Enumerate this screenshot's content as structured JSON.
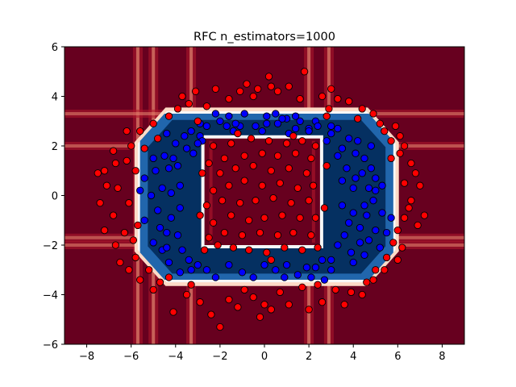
{
  "chart_data": {
    "type": "scatter",
    "title": "RFC n_estimators=1000",
    "xlabel": "",
    "ylabel": "",
    "xlim": [
      -9,
      9
    ],
    "ylim": [
      -6,
      6
    ],
    "x_ticks": [
      -8,
      -6,
      -4,
      -2,
      0,
      2,
      4,
      6,
      8
    ],
    "y_ticks": [
      -6,
      -4,
      -2,
      0,
      2,
      4,
      6
    ],
    "x_tick_labels": [
      "−8",
      "−6",
      "−4",
      "−2",
      "0",
      "2",
      "4",
      "6",
      "8"
    ],
    "y_tick_labels": [
      "−6",
      "−4",
      "−2",
      "0",
      "2",
      "4",
      "6"
    ],
    "grid": false,
    "legend": "none",
    "colors": {
      "class_outer": "#ff0000",
      "class_inner": "#0000ff",
      "region_outer": "#67001f",
      "region_inner": "#053061",
      "marker_edge": "#000000"
    },
    "decision_region": {
      "colormap": "RdBu",
      "inner_ring": {
        "x_range": [
          -3.8,
          3.0
        ],
        "y_range": [
          -3.4,
          3.3
        ],
        "hole_x": [
          -2.7,
          2.5
        ],
        "hole_y": [
          -2.0,
          2.3
        ],
        "corner_offset": 1.1
      },
      "white_bands_x": [
        -5.7,
        -5.0,
        -3.3,
        2.0,
        2.9
      ],
      "white_bands_y": [
        -2.0,
        -1.7,
        3.3,
        2.0
      ]
    },
    "series": [
      {
        "name": "",
        "color": "#0000ff",
        "points": [
          [
            -2.2,
            3.3
          ],
          [
            -1.6,
            3.2
          ],
          [
            -0.9,
            3.3
          ],
          [
            0.1,
            3.2
          ],
          [
            0.5,
            3.3
          ],
          [
            1.0,
            3.1
          ],
          [
            1.6,
            3.0
          ],
          [
            2.3,
            3.0
          ],
          [
            -2.9,
            2.9
          ],
          [
            -3.3,
            2.6
          ],
          [
            -2.6,
            2.8
          ],
          [
            -1.7,
            2.8
          ],
          [
            -1.1,
            2.8
          ],
          [
            -0.4,
            2.8
          ],
          [
            0.1,
            2.9
          ],
          [
            0.6,
            2.9
          ],
          [
            1.4,
            2.7
          ],
          [
            2.0,
            2.7
          ],
          [
            3.0,
            2.8
          ],
          [
            3.3,
            2.7
          ],
          [
            -3.6,
            2.4
          ],
          [
            -2.9,
            2.4
          ],
          [
            -4.0,
            2.1
          ],
          [
            -3.2,
            1.7
          ],
          [
            -4.4,
            2.5
          ],
          [
            -2.8,
            2.2
          ],
          [
            -1.4,
            2.6
          ],
          [
            -0.1,
            2.6
          ],
          [
            1.1,
            2.5
          ],
          [
            2.0,
            2.6
          ],
          [
            2.8,
            2.2
          ],
          [
            3.0,
            2.5
          ],
          [
            3.5,
            1.9
          ],
          [
            3.8,
            2.3
          ],
          [
            4.1,
            1.7
          ],
          [
            4.5,
            1.5
          ],
          [
            4.2,
            2.2
          ],
          [
            4.8,
            2.0
          ],
          [
            3.3,
            1.6
          ],
          [
            4.8,
            1.1
          ],
          [
            5.0,
            0.7
          ],
          [
            5.3,
            0.4
          ],
          [
            4.7,
            0.3
          ],
          [
            4.1,
            0.7
          ],
          [
            4.4,
            0.9
          ],
          [
            3.7,
            1.1
          ],
          [
            3.5,
            0.6
          ],
          [
            4.0,
            0.3
          ],
          [
            4.9,
            -0.2
          ],
          [
            5.3,
            -0.7
          ],
          [
            5.7,
            -0.9
          ],
          [
            4.6,
            -0.8
          ],
          [
            4.0,
            -0.7
          ],
          [
            3.5,
            -0.4
          ],
          [
            3.8,
            -1.1
          ],
          [
            4.3,
            -1.3
          ],
          [
            5.0,
            -1.4
          ],
          [
            4.7,
            -1.8
          ],
          [
            4.3,
            -1.9
          ],
          [
            3.6,
            -1.6
          ],
          [
            3.3,
            -2.0
          ],
          [
            3.9,
            -2.3
          ],
          [
            4.5,
            -2.4
          ],
          [
            5.2,
            -2.1
          ],
          [
            3.0,
            -2.6
          ],
          [
            2.6,
            -2.6
          ],
          [
            3.0,
            -3.0
          ],
          [
            2.7,
            -3.4
          ],
          [
            2.1,
            -3.3
          ],
          [
            1.5,
            -3.2
          ],
          [
            1.0,
            -2.8
          ],
          [
            0.5,
            -3.0
          ],
          [
            0.0,
            -2.8
          ],
          [
            -0.5,
            -3.3
          ],
          [
            -1.0,
            -3.1
          ],
          [
            -1.6,
            -2.8
          ],
          [
            -2.2,
            -3.3
          ],
          [
            -3.0,
            -2.8
          ],
          [
            -3.4,
            -2.6
          ],
          [
            -4.3,
            -2.7
          ],
          [
            -3.7,
            -2.2
          ],
          [
            -4.6,
            -2.2
          ],
          [
            -5.0,
            -1.9
          ],
          [
            -4.4,
            -1.5
          ],
          [
            -3.9,
            -1.6
          ],
          [
            -5.4,
            -1.0
          ],
          [
            -4.8,
            -0.6
          ],
          [
            -4.2,
            -0.9
          ],
          [
            -3.8,
            -0.5
          ],
          [
            -5.1,
            0.0
          ],
          [
            -4.6,
            0.3
          ],
          [
            -4.2,
            0.1
          ],
          [
            -3.8,
            0.4
          ],
          [
            -5.4,
            0.7
          ],
          [
            -4.9,
            1.0
          ],
          [
            -4.3,
            1.1
          ],
          [
            -3.9,
            1.2
          ],
          [
            -4.5,
            1.6
          ],
          [
            -5.0,
            1.5
          ],
          [
            -4.1,
            1.5
          ],
          [
            -5.6,
            0.2
          ],
          [
            -3.3,
            -3.0
          ],
          [
            -2.6,
            -3.0
          ],
          [
            0.9,
            -3.3
          ],
          [
            1.9,
            -2.9
          ],
          [
            4.0,
            -2.7
          ],
          [
            -3.0,
            2.1
          ],
          [
            -2.0,
            3.0
          ],
          [
            -1.3,
            2.9
          ],
          [
            0.8,
            3.1
          ],
          [
            1.4,
            3.2
          ],
          [
            2.4,
            2.8
          ],
          [
            -3.5,
            1.9
          ],
          [
            -4.7,
            -1.3
          ],
          [
            5.5,
            -1.5
          ],
          [
            5.0,
            0.2
          ],
          [
            4.5,
            -0.4
          ],
          [
            -4.4,
            -2.1
          ],
          [
            -3.8,
            -3.1
          ],
          [
            2.3,
            -2.9
          ]
        ]
      },
      {
        "name": "",
        "color": "#ff0000",
        "points": [
          [
            -3.1,
            4.2
          ],
          [
            -2.2,
            4.3
          ],
          [
            -1.6,
            3.9
          ],
          [
            -0.8,
            4.5
          ],
          [
            -0.3,
            4.3
          ],
          [
            0.3,
            4.4
          ],
          [
            1.1,
            4.4
          ],
          [
            1.8,
            5.0
          ],
          [
            2.6,
            4.0
          ],
          [
            3.3,
            3.9
          ],
          [
            3.8,
            3.8
          ],
          [
            4.4,
            3.5
          ],
          [
            4.9,
            3.3
          ],
          [
            5.4,
            2.6
          ],
          [
            5.9,
            2.8
          ],
          [
            6.3,
            2.0
          ],
          [
            6.1,
            1.7
          ],
          [
            6.6,
            1.3
          ],
          [
            6.3,
            0.5
          ],
          [
            6.8,
            0.9
          ],
          [
            7.0,
            0.4
          ],
          [
            6.6,
            -0.2
          ],
          [
            6.3,
            -0.9
          ],
          [
            6.9,
            -1.2
          ],
          [
            6.0,
            -1.4
          ],
          [
            6.2,
            -2.1
          ],
          [
            5.5,
            -2.5
          ],
          [
            5.0,
            -3.0
          ],
          [
            4.6,
            -3.5
          ],
          [
            3.9,
            -3.9
          ],
          [
            3.6,
            -4.4
          ],
          [
            2.6,
            -4.3
          ],
          [
            2.0,
            -4.6
          ],
          [
            1.1,
            -4.4
          ],
          [
            0.3,
            -4.6
          ],
          [
            -0.5,
            -4.1
          ],
          [
            -1.2,
            -4.5
          ],
          [
            -2.0,
            -5.3
          ],
          [
            -2.9,
            -4.3
          ],
          [
            -3.5,
            -4.0
          ],
          [
            -4.1,
            -4.7
          ],
          [
            -5.0,
            -3.8
          ],
          [
            -5.6,
            -3.4
          ],
          [
            -6.1,
            -3.0
          ],
          [
            -6.5,
            -2.7
          ],
          [
            -6.7,
            -2.0
          ],
          [
            -7.2,
            -1.4
          ],
          [
            -6.8,
            -0.8
          ],
          [
            -7.4,
            -0.3
          ],
          [
            -7.1,
            0.4
          ],
          [
            -7.2,
            1.0
          ],
          [
            -6.7,
            1.3
          ],
          [
            -6.2,
            1.4
          ],
          [
            -6.8,
            1.8
          ],
          [
            -6.0,
            2.0
          ],
          [
            -5.6,
            2.6
          ],
          [
            -5.0,
            2.9
          ],
          [
            -4.3,
            3.2
          ],
          [
            -3.9,
            3.5
          ],
          [
            -3.4,
            3.7
          ],
          [
            -2.6,
            3.6
          ],
          [
            -1.1,
            4.2
          ],
          [
            -0.5,
            4.0
          ],
          [
            0.6,
            4.2
          ],
          [
            1.6,
            3.9
          ],
          [
            2.9,
            3.5
          ],
          [
            4.2,
            3.1
          ],
          [
            5.2,
            2.9
          ],
          [
            5.7,
            2.2
          ],
          [
            6.1,
            2.4
          ],
          [
            6.5,
            -0.5
          ],
          [
            5.8,
            -1.9
          ],
          [
            5.4,
            -3.0
          ],
          [
            4.4,
            -4.0
          ],
          [
            3.2,
            -3.8
          ],
          [
            2.4,
            -3.6
          ],
          [
            1.7,
            -3.7
          ],
          [
            0.7,
            -3.9
          ],
          [
            0.0,
            -4.4
          ],
          [
            -0.9,
            -3.8
          ],
          [
            -1.6,
            -4.2
          ],
          [
            -2.4,
            -4.8
          ],
          [
            -3.3,
            -3.6
          ],
          [
            -4.3,
            -3.3
          ],
          [
            -5.2,
            -3.0
          ],
          [
            -5.8,
            -2.5
          ],
          [
            -6.3,
            -1.5
          ],
          [
            -5.7,
            -1.2
          ],
          [
            -6.1,
            -0.3
          ],
          [
            -6.6,
            0.3
          ],
          [
            -5.8,
            1.0
          ],
          [
            -5.4,
            1.9
          ],
          [
            -4.8,
            2.3
          ],
          [
            -2.3,
            2.0
          ],
          [
            -1.5,
            2.1
          ],
          [
            -0.6,
            2.3
          ],
          [
            0.2,
            2.2
          ],
          [
            1.0,
            2.1
          ],
          [
            1.7,
            2.2
          ],
          [
            2.3,
            2.0
          ],
          [
            2.1,
            1.5
          ],
          [
            1.4,
            1.7
          ],
          [
            0.6,
            1.6
          ],
          [
            -0.1,
            1.7
          ],
          [
            -0.9,
            1.6
          ],
          [
            -1.8,
            1.5
          ],
          [
            -2.5,
            1.3
          ],
          [
            -2.0,
            0.9
          ],
          [
            -1.3,
            1.1
          ],
          [
            -0.5,
            1.2
          ],
          [
            0.3,
            1.0
          ],
          [
            1.1,
            1.1
          ],
          [
            1.9,
            0.9
          ],
          [
            2.2,
            0.4
          ],
          [
            1.5,
            0.3
          ],
          [
            0.7,
            0.5
          ],
          [
            -0.1,
            0.4
          ],
          [
            -0.9,
            0.6
          ],
          [
            -1.6,
            0.4
          ],
          [
            -2.3,
            0.2
          ],
          [
            -2.6,
            -0.4
          ],
          [
            -1.9,
            -0.2
          ],
          [
            -1.1,
            -0.3
          ],
          [
            -0.4,
            -0.2
          ],
          [
            0.4,
            -0.1
          ],
          [
            1.2,
            -0.3
          ],
          [
            2.0,
            -0.2
          ],
          [
            2.3,
            -0.9
          ],
          [
            1.6,
            -0.9
          ],
          [
            0.8,
            -0.8
          ],
          [
            0.0,
            -0.9
          ],
          [
            -0.7,
            -1.0
          ],
          [
            -1.5,
            -0.8
          ],
          [
            -2.3,
            -1.1
          ],
          [
            -2.5,
            -1.7
          ],
          [
            -1.8,
            -1.5
          ],
          [
            -1.0,
            -1.6
          ],
          [
            -0.2,
            -1.5
          ],
          [
            0.6,
            -1.6
          ],
          [
            1.3,
            -1.5
          ],
          [
            2.1,
            -1.6
          ],
          [
            2.4,
            -2.1
          ],
          [
            1.7,
            -2.2
          ],
          [
            0.9,
            -2.1
          ],
          [
            0.1,
            -2.3
          ],
          [
            -0.7,
            -2.2
          ],
          [
            -1.4,
            -2.1
          ],
          [
            -2.1,
            -2.0
          ],
          [
            -2.7,
            -2.2
          ],
          [
            2.8,
            1.2
          ],
          [
            2.7,
            -0.5
          ],
          [
            -2.8,
            0.9
          ],
          [
            -2.9,
            -0.8
          ],
          [
            0.3,
            -2.6
          ],
          [
            -1.2,
            2.5
          ],
          [
            1.3,
            2.4
          ],
          [
            -3.0,
            3.0
          ],
          [
            2.8,
            3.2
          ],
          [
            6.0,
            -2.6
          ],
          [
            -6.2,
            2.6
          ],
          [
            3.0,
            4.3
          ],
          [
            -3.7,
            4.0
          ],
          [
            4.9,
            -3.4
          ],
          [
            -4.7,
            -3.5
          ],
          [
            7.2,
            -0.8
          ],
          [
            -7.5,
            0.9
          ],
          [
            0.2,
            4.8
          ],
          [
            -0.2,
            -4.9
          ],
          [
            5.7,
            1.5
          ],
          [
            -5.9,
            -1.8
          ]
        ]
      }
    ]
  }
}
